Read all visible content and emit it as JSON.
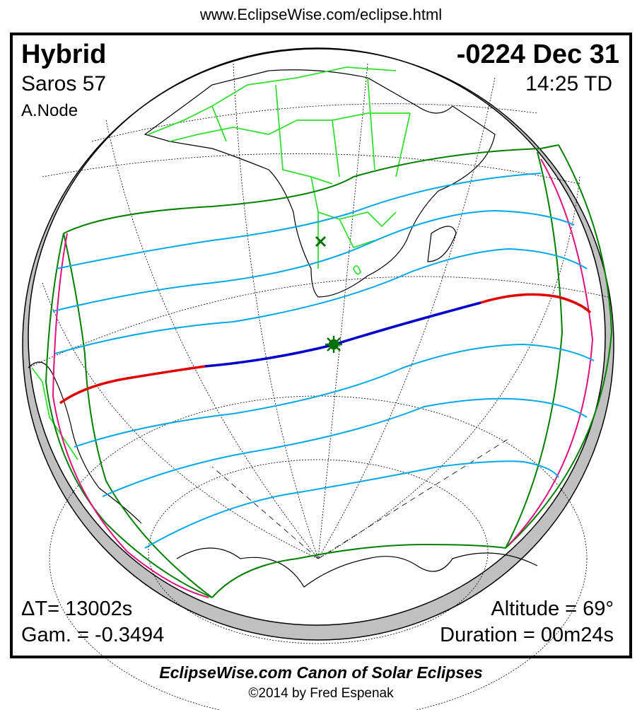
{
  "header": {
    "url": "www.EclipseWise.com/eclipse.html"
  },
  "eclipse": {
    "type": "Hybrid",
    "date": "-0224 Dec 31",
    "saros": "Saros  57",
    "time": "14:25 TD",
    "node": "A.Node",
    "delta_t": "ΔT=  13002s",
    "gamma": "Gam. = -0.3494",
    "altitude": "Altitude = 69°",
    "duration": "Duration = 00m24s"
  },
  "footer": {
    "canon": "EclipseWise.com Canon of Solar Eclipses",
    "copyright": "©2014 by Fred Espenak"
  },
  "colors": {
    "penumbral_limits": "#008000",
    "partial_contours": "#00a8e8",
    "central_line_total": "#0000cc",
    "central_line_annular": "#e00000",
    "rise_set_curves": "#e0107f",
    "borders": "#33dd33",
    "night_side": "#c0c0c0"
  }
}
